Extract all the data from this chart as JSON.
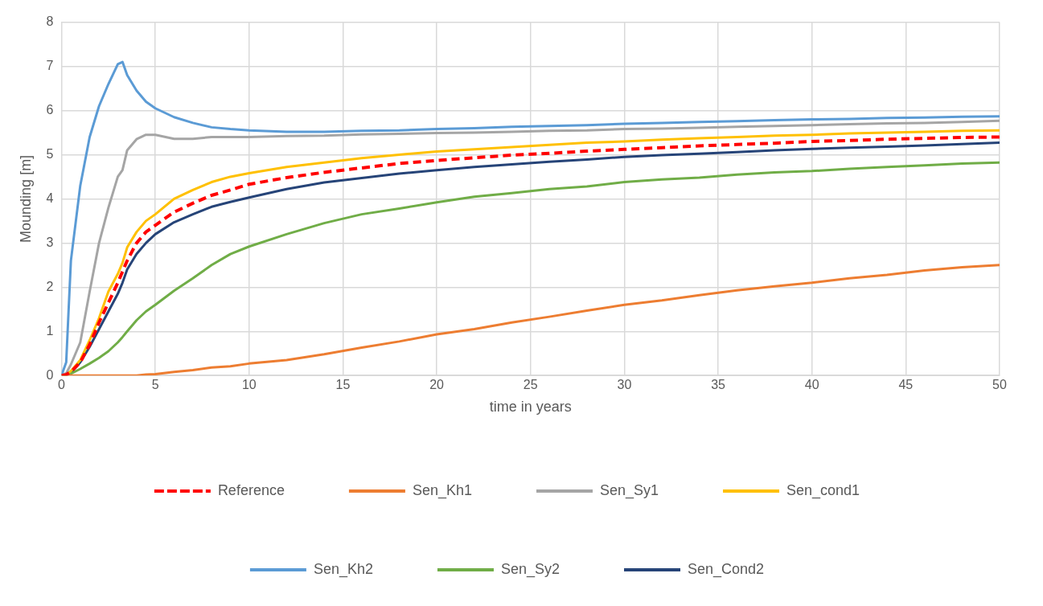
{
  "chart_data": {
    "type": "line",
    "xlabel": "time in years",
    "ylabel": "Mounding [m]",
    "x": [
      0,
      0.25,
      0.5,
      1,
      1.5,
      2,
      2.5,
      3,
      3.25,
      3.5,
      4,
      4.5,
      5,
      6,
      7,
      8,
      9,
      10,
      12,
      14,
      16,
      18,
      20,
      22,
      24,
      26,
      28,
      30,
      32,
      34,
      36,
      38,
      40,
      42,
      44,
      46,
      48,
      50
    ],
    "xlim": [
      0,
      50
    ],
    "xticks": [
      0,
      5,
      10,
      15,
      20,
      25,
      30,
      35,
      40,
      45,
      50
    ],
    "ylim": [
      0,
      8
    ],
    "yticks": [
      0,
      1,
      2,
      3,
      4,
      5,
      6,
      7,
      8
    ],
    "grid": true,
    "legend": "bottom",
    "marker": "none",
    "series": [
      {
        "name": "Reference",
        "color": "#ff0000",
        "line_style": "dashed",
        "values": [
          0,
          0.02,
          0.08,
          0.3,
          0.7,
          1.2,
          1.65,
          2.1,
          2.35,
          2.6,
          3.0,
          3.25,
          3.4,
          3.7,
          3.9,
          4.08,
          4.2,
          4.33,
          4.48,
          4.6,
          4.7,
          4.8,
          4.87,
          4.93,
          4.99,
          5.03,
          5.08,
          5.12,
          5.16,
          5.2,
          5.23,
          5.26,
          5.3,
          5.32,
          5.35,
          5.37,
          5.39,
          5.4
        ]
      },
      {
        "name": "Sen_Kh1",
        "color": "#ed7d31",
        "values": [
          0,
          0,
          0,
          0,
          0,
          0,
          0,
          0,
          0,
          0,
          0,
          0.02,
          0.03,
          0.08,
          0.12,
          0.18,
          0.21,
          0.27,
          0.35,
          0.48,
          0.63,
          0.77,
          0.93,
          1.05,
          1.2,
          1.33,
          1.47,
          1.6,
          1.7,
          1.82,
          1.93,
          2.02,
          2.1,
          2.2,
          2.28,
          2.38,
          2.45,
          2.5
        ]
      },
      {
        "name": "Sen_Sy1",
        "color": "#a5a5a5",
        "values": [
          0,
          0.05,
          0.25,
          0.75,
          1.9,
          3.0,
          3.8,
          4.5,
          4.65,
          5.1,
          5.35,
          5.45,
          5.45,
          5.36,
          5.36,
          5.4,
          5.4,
          5.4,
          5.42,
          5.43,
          5.46,
          5.47,
          5.49,
          5.5,
          5.52,
          5.54,
          5.55,
          5.58,
          5.59,
          5.61,
          5.63,
          5.65,
          5.67,
          5.69,
          5.71,
          5.72,
          5.74,
          5.77
        ]
      },
      {
        "name": "Sen_cond1",
        "color": "#ffc000",
        "values": [
          0,
          0.02,
          0.1,
          0.35,
          0.8,
          1.3,
          1.9,
          2.3,
          2.55,
          2.9,
          3.25,
          3.5,
          3.65,
          4.0,
          4.2,
          4.38,
          4.5,
          4.58,
          4.72,
          4.82,
          4.92,
          5.0,
          5.07,
          5.12,
          5.17,
          5.22,
          5.27,
          5.3,
          5.34,
          5.37,
          5.4,
          5.43,
          5.45,
          5.48,
          5.5,
          5.52,
          5.54,
          5.55
        ]
      },
      {
        "name": "Sen_Kh2",
        "color": "#5b9bd5",
        "values": [
          0,
          0.3,
          2.6,
          4.3,
          5.4,
          6.1,
          6.6,
          7.05,
          7.1,
          6.8,
          6.45,
          6.2,
          6.05,
          5.85,
          5.72,
          5.62,
          5.58,
          5.55,
          5.52,
          5.52,
          5.54,
          5.55,
          5.58,
          5.6,
          5.63,
          5.65,
          5.67,
          5.7,
          5.72,
          5.74,
          5.76,
          5.78,
          5.8,
          5.81,
          5.83,
          5.84,
          5.86,
          5.87
        ]
      },
      {
        "name": "Sen_Sy2",
        "color": "#70ad47",
        "values": [
          0,
          0.01,
          0.04,
          0.15,
          0.27,
          0.4,
          0.55,
          0.75,
          0.87,
          1.0,
          1.25,
          1.45,
          1.6,
          1.92,
          2.2,
          2.5,
          2.75,
          2.92,
          3.2,
          3.45,
          3.65,
          3.78,
          3.92,
          4.05,
          4.13,
          4.22,
          4.28,
          4.38,
          4.44,
          4.48,
          4.55,
          4.6,
          4.63,
          4.68,
          4.72,
          4.76,
          4.8,
          4.82
        ]
      },
      {
        "name": "Sen_Cond2",
        "color": "#264478",
        "values": [
          0,
          0.01,
          0.06,
          0.3,
          0.65,
          1.05,
          1.45,
          1.85,
          2.1,
          2.4,
          2.75,
          3.0,
          3.2,
          3.47,
          3.65,
          3.82,
          3.93,
          4.03,
          4.22,
          4.37,
          4.47,
          4.57,
          4.65,
          4.72,
          4.78,
          4.84,
          4.89,
          4.95,
          4.99,
          5.02,
          5.06,
          5.1,
          5.13,
          5.16,
          5.18,
          5.21,
          5.24,
          5.27
        ]
      }
    ]
  }
}
